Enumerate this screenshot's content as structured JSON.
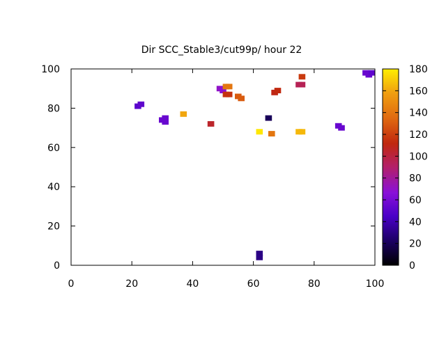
{
  "chart_data": {
    "type": "heatmap",
    "title": "Dir SCC_Stable3/cut99p/ hour 22",
    "xlabel": "",
    "ylabel": "",
    "xlim": [
      0,
      100
    ],
    "ylim": [
      0,
      100
    ],
    "xticks": [
      0,
      20,
      40,
      60,
      80,
      100
    ],
    "yticks": [
      0,
      20,
      40,
      60,
      80,
      100
    ],
    "colorbar": {
      "range": [
        0,
        180
      ],
      "ticks": [
        0,
        20,
        40,
        60,
        80,
        100,
        120,
        140,
        160,
        180
      ],
      "colormap": "gnuplot-pm3d (black-blue-purple-red-orange-yellow)"
    },
    "grid": false,
    "points": [
      {
        "x": 22,
        "y": 81,
        "v": 50
      },
      {
        "x": 23,
        "y": 82,
        "v": 52
      },
      {
        "x": 30,
        "y": 74,
        "v": 55
      },
      {
        "x": 31,
        "y": 75,
        "v": 55
      },
      {
        "x": 31,
        "y": 73,
        "v": 55
      },
      {
        "x": 37,
        "y": 77,
        "v": 160
      },
      {
        "x": 46,
        "y": 72,
        "v": 105
      },
      {
        "x": 49,
        "y": 90,
        "v": 70
      },
      {
        "x": 50,
        "y": 89,
        "v": 68
      },
      {
        "x": 51,
        "y": 91,
        "v": 140
      },
      {
        "x": 52,
        "y": 91,
        "v": 140
      },
      {
        "x": 51,
        "y": 87,
        "v": 115
      },
      {
        "x": 52,
        "y": 87,
        "v": 115
      },
      {
        "x": 55,
        "y": 86,
        "v": 130
      },
      {
        "x": 56,
        "y": 85,
        "v": 130
      },
      {
        "x": 62,
        "y": 68,
        "v": 178
      },
      {
        "x": 62,
        "y": 6,
        "v": 30
      },
      {
        "x": 62,
        "y": 4,
        "v": 30
      },
      {
        "x": 65,
        "y": 75,
        "v": 20
      },
      {
        "x": 66,
        "y": 67,
        "v": 140
      },
      {
        "x": 67,
        "y": 88,
        "v": 110
      },
      {
        "x": 68,
        "y": 89,
        "v": 112
      },
      {
        "x": 75,
        "y": 68,
        "v": 165
      },
      {
        "x": 76,
        "y": 68,
        "v": 165
      },
      {
        "x": 75,
        "y": 92,
        "v": 95
      },
      {
        "x": 76,
        "y": 92,
        "v": 95
      },
      {
        "x": 76,
        "y": 96,
        "v": 118
      },
      {
        "x": 88,
        "y": 71,
        "v": 55
      },
      {
        "x": 89,
        "y": 70,
        "v": 55
      },
      {
        "x": 97,
        "y": 98,
        "v": 55
      },
      {
        "x": 98,
        "y": 97,
        "v": 55
      },
      {
        "x": 99,
        "y": 98,
        "v": 52
      }
    ]
  }
}
